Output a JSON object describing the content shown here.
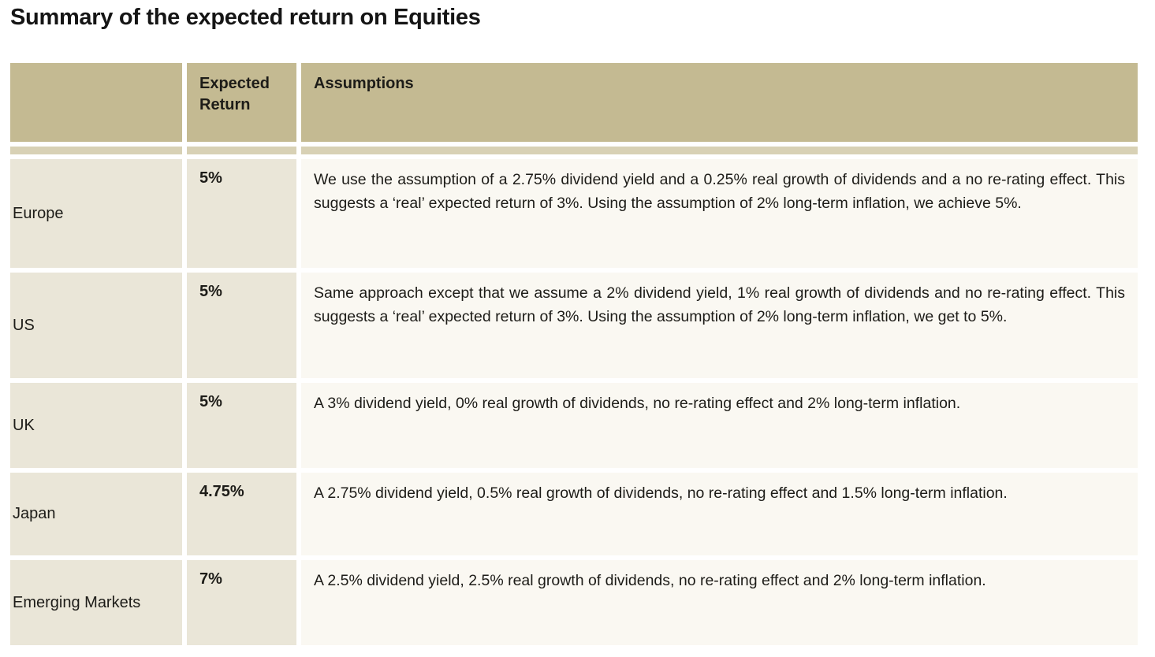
{
  "page": {
    "title": "Summary of the expected return on Equities"
  },
  "table": {
    "header": {
      "region": "",
      "expected_return": "Expected Return",
      "assumptions": "Assumptions"
    },
    "rows": [
      {
        "region": "Europe",
        "expected_return": "5%",
        "assumptions": "We use the assumption of a 2.75% dividend yield and a 0.25% real growth of dividends and a no re-rating effect. This suggests a ‘real’ expected return of 3%. Using the assumption of 2% long-term inflation, we achieve 5%."
      },
      {
        "region": "US",
        "expected_return": "5%",
        "assumptions": "Same approach except that we assume a 2% dividend yield, 1% real growth of dividends and no re-rating effect. This suggests a ‘real’ expected return of 3%. Using the assumption of 2% long-term inflation, we get to 5%."
      },
      {
        "region": "UK",
        "expected_return": "5%",
        "assumptions": "A 3% dividend yield, 0% real growth of dividends, no re-rating effect and 2% long-term inflation."
      },
      {
        "region": "Japan",
        "expected_return": "4.75%",
        "assumptions": "A 2.75% dividend yield, 0.5% real growth of dividends, no re-rating effect and 1.5% long-term inflation."
      },
      {
        "region": "Emerging Markets",
        "expected_return": "7%",
        "assumptions": "A 2.5% dividend yield, 2.5% real growth of dividends, no re-rating effect and 2% long-term inflation."
      }
    ]
  },
  "colors": {
    "header_bg": "#c4ba92",
    "header_band_bg": "#d8d1b5",
    "stub_bg": "#eae6d8",
    "assumptions_bg": "#faf8f2",
    "text": "#1d1c18"
  }
}
